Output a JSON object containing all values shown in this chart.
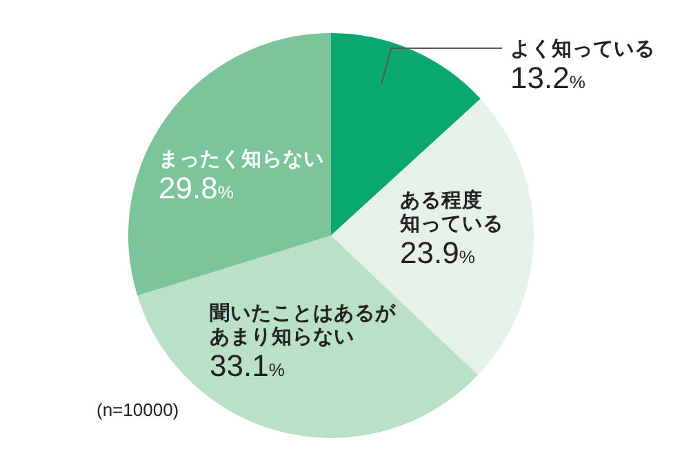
{
  "chart_data": {
    "type": "pie",
    "categories": [
      "よく知っている",
      "ある程度知っている",
      "聞いたことはあるがあまり知らない",
      "まったく知らない"
    ],
    "values": [
      13.2,
      23.9,
      33.1,
      29.8
    ],
    "value_labels": [
      "13.2%",
      "23.9%",
      "33.1%",
      "29.8%"
    ],
    "colors": [
      "#0aa86e",
      "#e6f2e8",
      "#bbe0c8",
      "#7cc49a"
    ],
    "annotations": [
      "(n=10000)"
    ]
  }
}
